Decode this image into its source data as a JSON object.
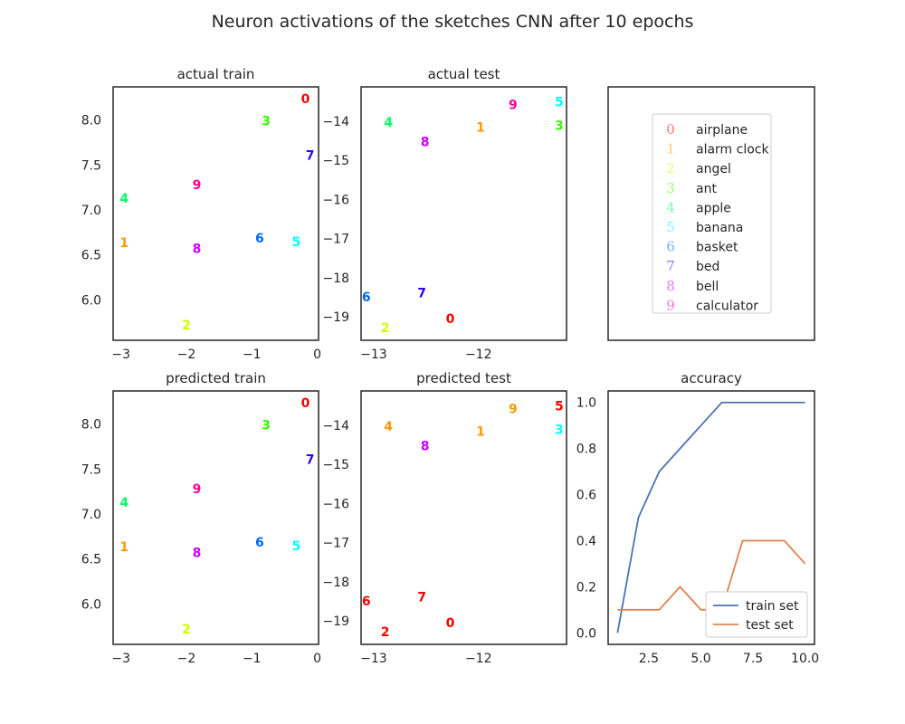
{
  "suptitle": "Neuron activations of the sketches CNN after 10 epochs",
  "classes": [
    {
      "digit": "0",
      "name": "airplane",
      "color": "#ff0000"
    },
    {
      "digit": "1",
      "name": "alarm clock",
      "color": "#ff9900"
    },
    {
      "digit": "2",
      "name": "angel",
      "color": "#ccff00"
    },
    {
      "digit": "3",
      "name": "ant",
      "color": "#33ff00"
    },
    {
      "digit": "4",
      "name": "apple",
      "color": "#00ff66"
    },
    {
      "digit": "5",
      "name": "banana",
      "color": "#00ffff"
    },
    {
      "digit": "6",
      "name": "basket",
      "color": "#0066ff"
    },
    {
      "digit": "7",
      "name": "bed",
      "color": "#3300ff"
    },
    {
      "digit": "8",
      "name": "bell",
      "color": "#cc00ff"
    },
    {
      "digit": "9",
      "name": "calculator",
      "color": "#ff0099"
    }
  ],
  "chart_data": [
    {
      "id": "actual-train",
      "type": "scatter",
      "title": "actual train",
      "xlim": [
        -3.12,
        0.02
      ],
      "ylim": [
        5.55,
        8.37
      ],
      "xticks": [
        -3,
        -2,
        -1,
        0
      ],
      "xtick_labels": [
        "−3",
        "−2",
        "−1",
        "0"
      ],
      "yticks": [
        6.0,
        6.5,
        7.0,
        7.5,
        8.0
      ],
      "ytick_labels": [
        "6.0",
        "6.5",
        "7.0",
        "7.5",
        "8.0"
      ],
      "points": [
        {
          "x": -0.18,
          "y": 8.24,
          "label": "0",
          "class": 0
        },
        {
          "x": -2.95,
          "y": 6.64,
          "label": "1",
          "class": 1
        },
        {
          "x": -2.0,
          "y": 5.72,
          "label": "2",
          "class": 2
        },
        {
          "x": -0.78,
          "y": 7.99,
          "label": "3",
          "class": 3
        },
        {
          "x": -2.95,
          "y": 7.13,
          "label": "4",
          "class": 4
        },
        {
          "x": -0.32,
          "y": 6.65,
          "label": "5",
          "class": 5
        },
        {
          "x": -0.88,
          "y": 6.69,
          "label": "6",
          "class": 6
        },
        {
          "x": -0.11,
          "y": 7.61,
          "label": "7",
          "class": 7
        },
        {
          "x": -1.84,
          "y": 6.57,
          "label": "8",
          "class": 8
        },
        {
          "x": -1.84,
          "y": 7.28,
          "label": "9",
          "class": 9
        }
      ]
    },
    {
      "id": "actual-test",
      "type": "scatter",
      "title": "actual test",
      "xlim": [
        -13.12,
        -11.16
      ],
      "ylim": [
        -19.6,
        -13.12
      ],
      "xticks": [
        -13,
        -12
      ],
      "xtick_labels": [
        "−13",
        "−12"
      ],
      "yticks": [
        -19,
        -18,
        -17,
        -16,
        -15,
        -14
      ],
      "ytick_labels": [
        "−19",
        "−18",
        "−17",
        "−16",
        "−15",
        "−14"
      ],
      "points": [
        {
          "x": -12.27,
          "y": -19.05,
          "label": "0",
          "class": 0
        },
        {
          "x": -11.98,
          "y": -14.15,
          "label": "1",
          "class": 1
        },
        {
          "x": -12.89,
          "y": -19.28,
          "label": "2",
          "class": 2
        },
        {
          "x": -11.23,
          "y": -14.1,
          "label": "3",
          "class": 3
        },
        {
          "x": -12.86,
          "y": -14.02,
          "label": "4",
          "class": 4
        },
        {
          "x": -11.23,
          "y": -13.5,
          "label": "5",
          "class": 5
        },
        {
          "x": -13.07,
          "y": -18.49,
          "label": "6",
          "class": 6
        },
        {
          "x": -12.54,
          "y": -18.39,
          "label": "7",
          "class": 7
        },
        {
          "x": -12.51,
          "y": -14.52,
          "label": "8",
          "class": 8
        },
        {
          "x": -11.67,
          "y": -13.57,
          "label": "9",
          "class": 9
        }
      ]
    },
    {
      "id": "predicted-train",
      "type": "scatter",
      "title": "predicted train",
      "xlim": [
        -3.12,
        0.02
      ],
      "ylim": [
        5.55,
        8.37
      ],
      "xticks": [
        -3,
        -2,
        -1,
        0
      ],
      "xtick_labels": [
        "−3",
        "−2",
        "−1",
        "0"
      ],
      "yticks": [
        6.0,
        6.5,
        7.0,
        7.5,
        8.0
      ],
      "ytick_labels": [
        "6.0",
        "6.5",
        "7.0",
        "7.5",
        "8.0"
      ],
      "points": [
        {
          "x": -0.18,
          "y": 8.24,
          "label": "0",
          "class": 0
        },
        {
          "x": -2.95,
          "y": 6.64,
          "label": "1",
          "class": 1
        },
        {
          "x": -2.0,
          "y": 5.72,
          "label": "2",
          "class": 2
        },
        {
          "x": -0.78,
          "y": 7.99,
          "label": "3",
          "class": 3
        },
        {
          "x": -2.95,
          "y": 7.13,
          "label": "4",
          "class": 4
        },
        {
          "x": -0.32,
          "y": 6.65,
          "label": "5",
          "class": 5
        },
        {
          "x": -0.88,
          "y": 6.69,
          "label": "6",
          "class": 6
        },
        {
          "x": -0.11,
          "y": 7.61,
          "label": "7",
          "class": 7
        },
        {
          "x": -1.84,
          "y": 6.57,
          "label": "8",
          "class": 8
        },
        {
          "x": -1.84,
          "y": 7.28,
          "label": "9",
          "class": 9
        }
      ]
    },
    {
      "id": "predicted-test",
      "type": "scatter",
      "title": "predicted test",
      "xlim": [
        -13.12,
        -11.16
      ],
      "ylim": [
        -19.6,
        -13.12
      ],
      "xticks": [
        -13,
        -12
      ],
      "xtick_labels": [
        "−13",
        "−12"
      ],
      "yticks": [
        -19,
        -18,
        -17,
        -16,
        -15,
        -14
      ],
      "ytick_labels": [
        "−19",
        "−18",
        "−17",
        "−16",
        "−15",
        "−14"
      ],
      "points": [
        {
          "x": -12.27,
          "y": -19.05,
          "label": "0",
          "class": 0
        },
        {
          "x": -11.98,
          "y": -14.15,
          "label": "1",
          "class": 1
        },
        {
          "x": -12.89,
          "y": -19.28,
          "label": "2",
          "class": 0
        },
        {
          "x": -11.23,
          "y": -14.1,
          "label": "3",
          "class": 5
        },
        {
          "x": -12.86,
          "y": -14.02,
          "label": "4",
          "class": 1
        },
        {
          "x": -11.23,
          "y": -13.5,
          "label": "5",
          "class": 0
        },
        {
          "x": -13.07,
          "y": -18.49,
          "label": "6",
          "class": 0
        },
        {
          "x": -12.54,
          "y": -18.39,
          "label": "7",
          "class": 0
        },
        {
          "x": -12.51,
          "y": -14.52,
          "label": "8",
          "class": 8
        },
        {
          "x": -11.67,
          "y": -13.57,
          "label": "9",
          "class": 1
        }
      ]
    },
    {
      "id": "accuracy",
      "type": "line",
      "title": "accuracy",
      "xlim": [
        0.55,
        10.45
      ],
      "ylim": [
        -0.05,
        1.05
      ],
      "xticks": [
        2.5,
        5.0,
        7.5,
        10.0
      ],
      "xtick_labels": [
        "2.5",
        "5.0",
        "7.5",
        "10.0"
      ],
      "yticks": [
        0.0,
        0.2,
        0.4,
        0.6,
        0.8,
        1.0
      ],
      "ytick_labels": [
        "0.0",
        "0.2",
        "0.4",
        "0.6",
        "0.8",
        "1.0"
      ],
      "legend": "lower right",
      "x": [
        1,
        2,
        3,
        4,
        5,
        6,
        7,
        8,
        9,
        10
      ],
      "series": [
        {
          "name": "train set",
          "color": "#4c72b0",
          "values": [
            0.0,
            0.5,
            0.7,
            0.8,
            0.9,
            1.0,
            1.0,
            1.0,
            1.0,
            1.0
          ]
        },
        {
          "name": "test set",
          "color": "#dd8452",
          "values": [
            0.1,
            0.1,
            0.1,
            0.2,
            0.1,
            0.1,
            0.4,
            0.4,
            0.4,
            0.3
          ]
        }
      ]
    }
  ]
}
